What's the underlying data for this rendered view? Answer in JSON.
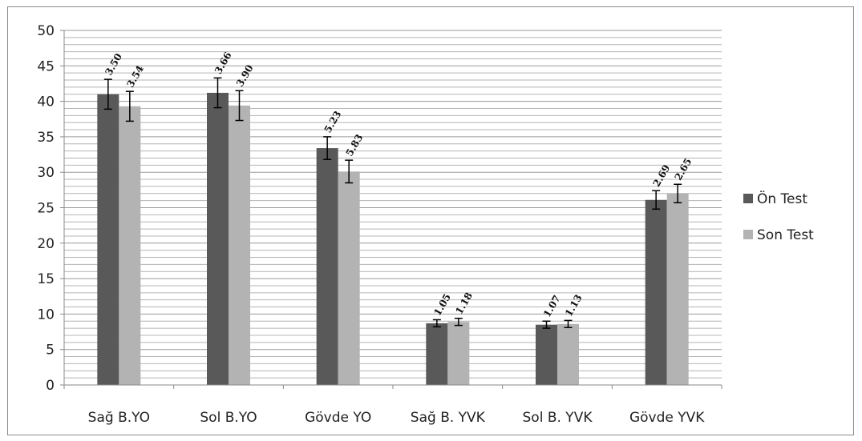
{
  "chart_data": {
    "type": "bar",
    "categories": [
      "Sağ B.YO",
      "Sol B.YO",
      "Gövde YO",
      "Sağ B. YVK",
      "Sol B. YVK",
      "Gövde YVK"
    ],
    "series": [
      {
        "name": "Ön Test",
        "color": "#595959",
        "values": [
          41.0,
          41.2,
          33.4,
          8.7,
          8.5,
          26.1
        ],
        "error": [
          2.1,
          2.1,
          1.6,
          0.5,
          0.5,
          1.3
        ],
        "data_labels": [
          "3.50",
          "3.66",
          "5.23",
          "1.05",
          "1.07",
          "2.69"
        ]
      },
      {
        "name": "Son Test",
        "color": "#b3b3b3",
        "values": [
          39.3,
          39.4,
          30.1,
          8.9,
          8.6,
          27.0
        ],
        "error": [
          2.1,
          2.1,
          1.6,
          0.5,
          0.5,
          1.3
        ],
        "data_labels": [
          "3.54",
          "3.90",
          "5.83",
          "1.18",
          "1.13",
          "2.65"
        ]
      }
    ],
    "ylim": [
      0,
      50
    ],
    "yticks": [
      0,
      5,
      10,
      15,
      20,
      25,
      30,
      35,
      40,
      45,
      50
    ],
    "grid": true,
    "legend_position": "right",
    "title": "",
    "xlabel": "",
    "ylabel": ""
  }
}
